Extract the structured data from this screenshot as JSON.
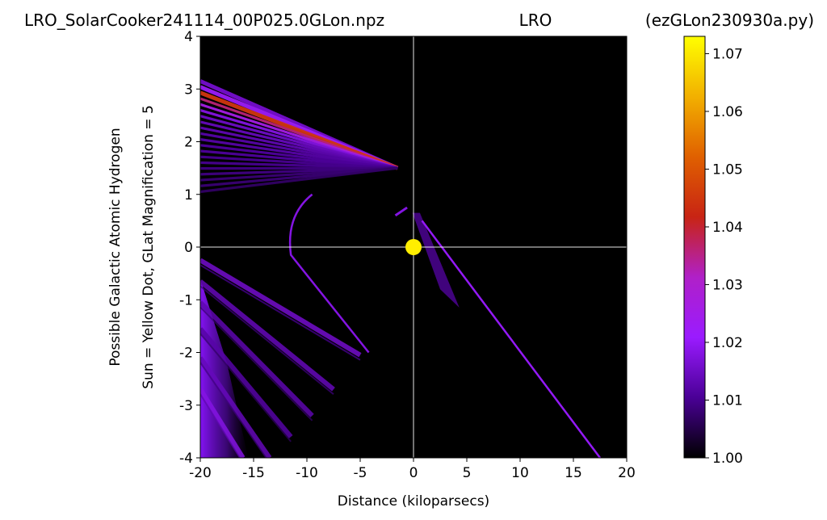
{
  "header": {
    "left": "LRO_SolarCooker241114_00P025.0GLon.npz",
    "center": "LRO",
    "right": "(ezGLon230930a.py)"
  },
  "chart_data": {
    "type": "heatmap",
    "title": "",
    "xlabel": "Distance (kiloparsecs)",
    "ylabel_line1": "Possible Galactic Atomic Hydrogen",
    "ylabel_line2": "Sun = Yellow Dot, GLat Magnification = 5",
    "xlim": [
      -20,
      20
    ],
    "ylim": [
      -4,
      4
    ],
    "xticks": [
      -20,
      -15,
      -10,
      -5,
      0,
      5,
      10,
      15,
      20
    ],
    "yticks": [
      -4,
      -3,
      -2,
      -1,
      0,
      1,
      2,
      3,
      4
    ],
    "grid": "axis crosshair at x=0 and y=0",
    "sun_marker": {
      "x": 0,
      "y": 0,
      "color": "#ffee00"
    },
    "colorbar": {
      "range": [
        1.0,
        1.073
      ],
      "ticks": [
        "1.00",
        "1.01",
        "1.02",
        "1.03",
        "1.04",
        "1.05",
        "1.06",
        "1.07"
      ],
      "colormap": "gnuplot",
      "stops": [
        "#000000",
        "#4a0096",
        "#9a1bff",
        "#b020c8",
        "#c82414",
        "#e06000",
        "#f2b000",
        "#ffff00"
      ]
    },
    "upper_rays": {
      "origin": [
        -1.5,
        1.5
      ],
      "count": 20,
      "x_end": -20,
      "y_end_top": 3.15,
      "y_end_bottom": 1.05,
      "values": [
        1.016,
        1.022,
        1.045,
        1.036,
        1.026,
        1.018,
        1.015,
        1.014,
        1.013,
        1.012,
        1.012,
        1.011,
        1.011,
        1.01,
        1.01,
        1.009,
        1.009,
        1.008,
        1.008,
        1.007
      ]
    },
    "lower_diagonal_bands": [
      {
        "x_start": -20,
        "y_start": -0.25,
        "x_end": -5.0,
        "y_end": -2.05,
        "value": 1.016
      },
      {
        "x_start": -20,
        "y_start": -0.65,
        "x_end": -7.5,
        "y_end": -2.7,
        "value": 1.014
      },
      {
        "x_start": -20,
        "y_start": -1.05,
        "x_end": -9.5,
        "y_end": -3.2,
        "value": 1.013
      },
      {
        "x_start": -20,
        "y_start": -1.55,
        "x_end": -11.5,
        "y_end": -3.6,
        "value": 1.012
      },
      {
        "x_start": -20,
        "y_start": -2.1,
        "x_end": -13.5,
        "y_end": -4.0,
        "value": 1.014
      },
      {
        "x_start": -20,
        "y_start": -2.7,
        "x_end": -16.0,
        "y_end": -4.0,
        "value": 1.018
      }
    ],
    "arc": {
      "x_top": -9.5,
      "y_top": 1.0,
      "x_mid": -11.5,
      "y_mid": -0.15,
      "x_bot": -4.2,
      "y_bot": -2.0,
      "value": 1.018
    },
    "right_streak": {
      "x_start": 0.8,
      "y_start": 0.5,
      "x_end": 17.5,
      "y_end": -4.0,
      "value": 1.02
    },
    "near_sun_fan": {
      "x_start": -0.1,
      "y_start": 0.65,
      "x_end": 4.3,
      "y_end": -1.15,
      "value": 1.012
    },
    "short_streak": {
      "x_start": -1.7,
      "y_start": 0.6,
      "x_end": -0.6,
      "y_end": 0.75,
      "value": 1.018
    }
  }
}
